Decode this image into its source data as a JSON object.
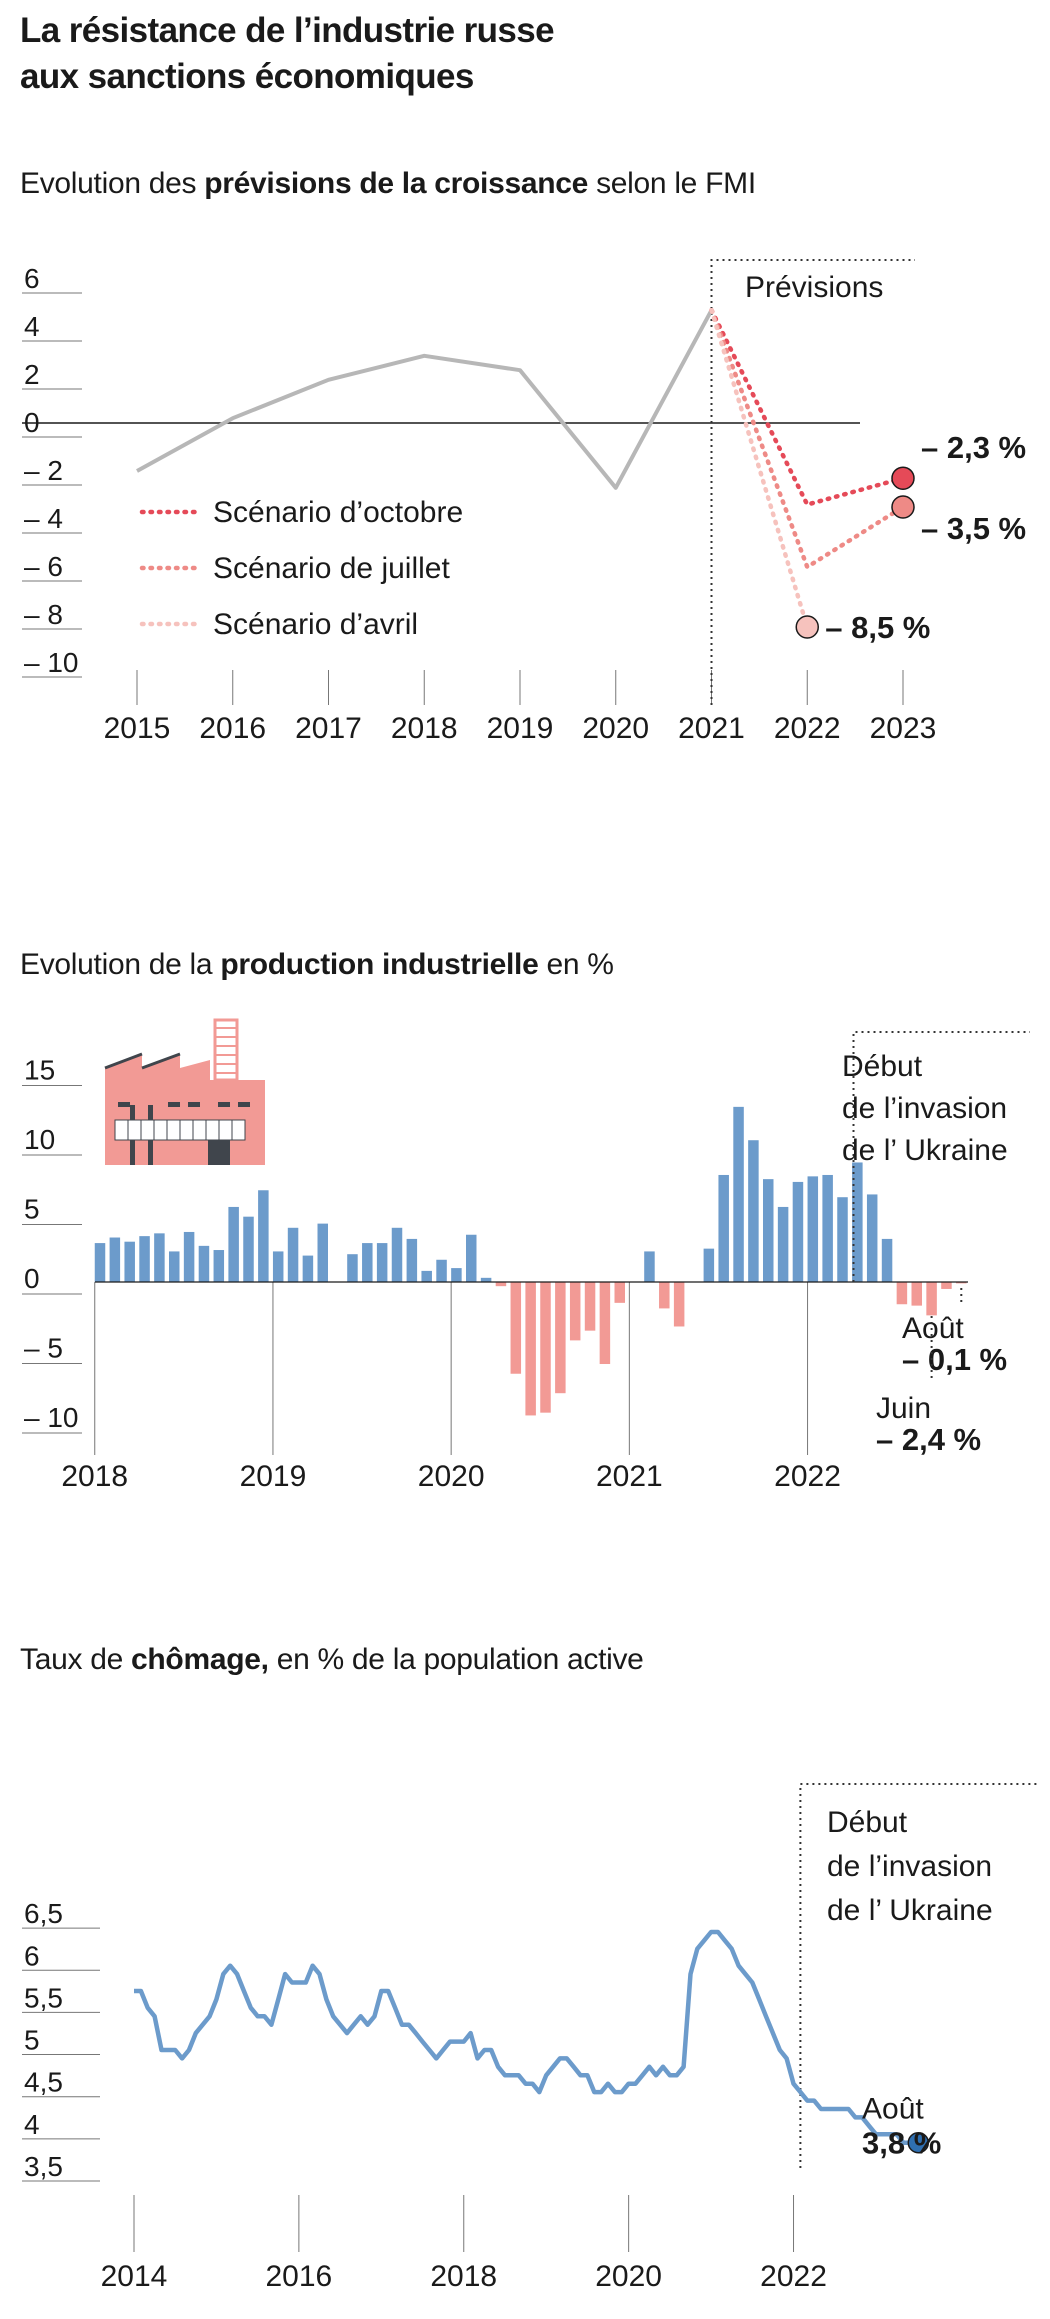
{
  "page": {
    "title_line1": "La résistance de l’industrie russe",
    "title_line2": "aux sanctions économiques"
  },
  "colors": {
    "blue": "#6c9bcb",
    "red": "#f29a95",
    "gray": "#b7b7b7",
    "oct": "#e54a58",
    "jul": "#ee8a86",
    "apr": "#f6c2bd",
    "dark_blue": "#2f6fb1"
  },
  "chart_data": [
    {
      "id": "growth",
      "type": "line",
      "title_parts": [
        "Evolution des ",
        "prévisions de la croissance",
        " selon le FMI"
      ],
      "x": [
        "2015",
        "2016",
        "2017",
        "2018",
        "2019",
        "2020",
        "2021",
        "2022",
        "2023"
      ],
      "ylim": [
        -10,
        6
      ],
      "y_ticks": [
        "6",
        "4",
        "2",
        "0",
        "– 2",
        "– 4",
        "– 6",
        "– 8",
        "– 10"
      ],
      "y_tick_values": [
        6,
        4,
        2,
        0,
        -2,
        -4,
        -6,
        -8,
        -10
      ],
      "actual": [
        -2,
        0.2,
        1.8,
        2.8,
        2.2,
        -2.7,
        4.7
      ],
      "forecast_label": "Prévisions",
      "scenarios": [
        {
          "name": "Scénario d’octobre",
          "key": "oct",
          "values": [
            4.7,
            -3.4,
            -2.3
          ],
          "end_label": "– 2,3 %"
        },
        {
          "name": "Scénario de juillet",
          "key": "jul",
          "values": [
            4.7,
            -6.0,
            -3.5
          ],
          "end_label": "– 3,5 %"
        },
        {
          "name": "Scénario d’avril",
          "key": "apr",
          "values": [
            4.7,
            -8.5
          ],
          "end_label": "– 8,5 %"
        }
      ]
    },
    {
      "id": "production",
      "type": "bar",
      "title_parts": [
        "Evolution de la ",
        "production industrielle",
        " en %"
      ],
      "start": "2018-01",
      "x_ticks": [
        "2018",
        "2019",
        "2020",
        "2021",
        "2022"
      ],
      "ylim": [
        -10,
        15
      ],
      "y_ticks": [
        "15",
        "10",
        "5",
        "0",
        "– 5",
        "– 10"
      ],
      "y_tick_values": [
        15,
        10,
        5,
        0,
        -5,
        -10
      ],
      "values": [
        2.8,
        3.2,
        2.9,
        3.3,
        3.5,
        2.2,
        3.6,
        2.6,
        2.3,
        5.4,
        4.7,
        6.6,
        2.2,
        3.9,
        1.9,
        4.2,
        0.0,
        2.0,
        2.8,
        2.8,
        3.9,
        3.1,
        0.8,
        1.6,
        1.0,
        3.4,
        0.3,
        -0.3,
        -6.6,
        -9.6,
        -9.4,
        -8.0,
        -4.2,
        -3.5,
        -5.9,
        -1.5,
        0.0,
        2.2,
        -1.9,
        -3.2,
        0.0,
        2.4,
        7.7,
        12.6,
        10.2,
        7.4,
        5.4,
        7.2,
        7.6,
        7.7,
        6.1,
        8.6,
        6.3,
        3.1,
        -1.6,
        -1.7,
        -2.4,
        -0.5,
        -0.1
      ],
      "events": {
        "invasion_index": 50,
        "invasion_lines": [
          "Début",
          "de l’invasion",
          "de l’ Ukraine"
        ]
      },
      "annotations": [
        {
          "index": 58,
          "month": "Août",
          "value_label": "– 0,1 %"
        },
        {
          "index": 56,
          "month": "Juin",
          "value_label": "– 2,4 %"
        }
      ]
    },
    {
      "id": "unemployment",
      "type": "line",
      "title_parts": [
        "Taux de ",
        "chômage,",
        " en % de la population active"
      ],
      "start": "2014-01",
      "x_ticks": [
        "2014",
        "2016",
        "2018",
        "2020",
        "2022"
      ],
      "ylim": [
        3.5,
        6.5
      ],
      "y_ticks": [
        "6,5",
        "6",
        "5,5",
        "5",
        "4,5",
        "4",
        "3,5"
      ],
      "y_tick_values": [
        6.5,
        6,
        5.5,
        5,
        4.5,
        4,
        3.5
      ],
      "values": [
        5.6,
        5.6,
        5.4,
        5.3,
        4.9,
        4.9,
        4.9,
        4.8,
        4.9,
        5.1,
        5.2,
        5.3,
        5.5,
        5.8,
        5.9,
        5.8,
        5.6,
        5.4,
        5.3,
        5.3,
        5.2,
        5.5,
        5.8,
        5.7,
        5.7,
        5.7,
        5.9,
        5.8,
        5.5,
        5.3,
        5.2,
        5.1,
        5.2,
        5.3,
        5.2,
        5.3,
        5.6,
        5.6,
        5.4,
        5.2,
        5.2,
        5.1,
        5.0,
        4.9,
        4.8,
        4.9,
        5.0,
        5.0,
        5.0,
        5.1,
        4.8,
        4.9,
        4.9,
        4.7,
        4.6,
        4.6,
        4.6,
        4.5,
        4.5,
        4.4,
        4.6,
        4.7,
        4.8,
        4.8,
        4.7,
        4.6,
        4.6,
        4.4,
        4.4,
        4.5,
        4.4,
        4.4,
        4.5,
        4.5,
        4.6,
        4.7,
        4.6,
        4.7,
        4.6,
        4.6,
        4.7,
        5.8,
        6.1,
        6.2,
        6.3,
        6.3,
        6.2,
        6.1,
        5.9,
        5.8,
        5.7,
        5.5,
        5.3,
        5.1,
        4.9,
        4.8,
        4.5,
        4.4,
        4.3,
        4.3,
        4.2,
        4.2,
        4.2,
        4.2,
        4.2,
        4.1,
        4.1,
        4.0,
        3.9,
        3.9,
        3.9,
        3.9,
        3.8,
        3.8
      ],
      "events": {
        "invasion_index": 97,
        "invasion_lines": [
          "Début",
          "de l’invasion",
          "de l’ Ukraine"
        ]
      },
      "annotation": {
        "month": "Août",
        "value_label": "3,8 %"
      }
    }
  ]
}
